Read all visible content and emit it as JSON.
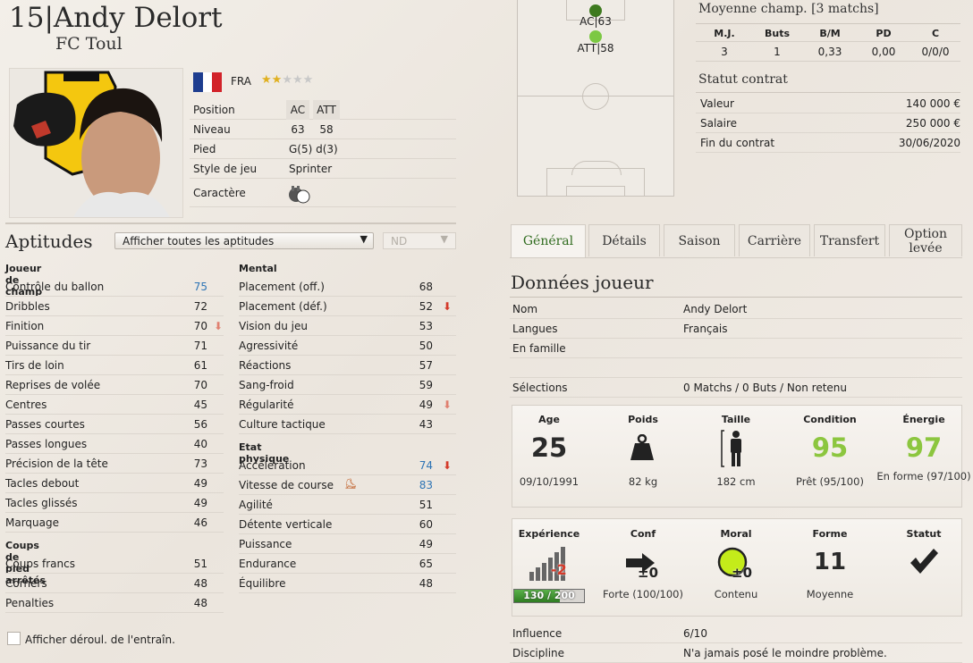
{
  "player": {
    "number": "15",
    "separator": "|",
    "name": "Andy Delort",
    "club": "FC Toul",
    "nationality": "FRA",
    "stars_rating": 2.5,
    "stars_max": 5
  },
  "info_table": {
    "position_label": "Position",
    "position_values": [
      "AC",
      "ATT"
    ],
    "niveau_label": "Niveau",
    "niveau_values": [
      "63",
      "58"
    ],
    "pied_label": "Pied",
    "pied_value": "G(5) d(3)",
    "style_label": "Style de jeu",
    "style_value": "Sprinter",
    "caractere_label": "Caractère"
  },
  "pitch": {
    "players": [
      {
        "label": "AC|63",
        "color": "#3e7a1f"
      },
      {
        "label": "ATT|58",
        "color": "#7cc843"
      }
    ]
  },
  "match_avg": {
    "title": "Moyenne champ. [3 matchs]",
    "headers": [
      "M.J.",
      "Buts",
      "B/M",
      "PD",
      "C"
    ],
    "values": [
      "3",
      "1",
      "0,33",
      "0,00",
      "0/0/0"
    ]
  },
  "contract": {
    "title": "Statut contrat",
    "rows": [
      {
        "label": "Valeur",
        "value": "140 000 €"
      },
      {
        "label": "Salaire",
        "value": "250 000 €"
      },
      {
        "label": "Fin du contrat",
        "value": "30/06/2020"
      }
    ]
  },
  "aptitudes": {
    "title": "Aptitudes",
    "dropdown_value": "Afficher toutes les aptitudes",
    "nd_value": "ND",
    "col1": {
      "section1_title": "Joueur de champ",
      "section1": [
        {
          "name": "Contrôle du ballon",
          "value": "75",
          "hl": true
        },
        {
          "name": "Dribbles",
          "value": "72"
        },
        {
          "name": "Finition",
          "value": "70",
          "arrow": "down-pale"
        },
        {
          "name": "Puissance du tir",
          "value": "71"
        },
        {
          "name": "Tirs de loin",
          "value": "61"
        },
        {
          "name": "Reprises de volée",
          "value": "70"
        },
        {
          "name": "Centres",
          "value": "45"
        },
        {
          "name": "Passes courtes",
          "value": "56"
        },
        {
          "name": "Passes longues",
          "value": "40"
        },
        {
          "name": "Précision de la tête",
          "value": "73"
        },
        {
          "name": "Tacles debout",
          "value": "49"
        },
        {
          "name": "Tacles glissés",
          "value": "49"
        },
        {
          "name": "Marquage",
          "value": "46"
        }
      ],
      "section2_title": "Coups de pied arrêtés",
      "section2": [
        {
          "name": "Coups francs",
          "value": "51"
        },
        {
          "name": "Corners",
          "value": "48"
        },
        {
          "name": "Penalties",
          "value": "48"
        }
      ]
    },
    "col2": {
      "section1_title": "Mental",
      "section1": [
        {
          "name": "Placement (off.)",
          "value": "68"
        },
        {
          "name": "Placement (déf.)",
          "value": "52",
          "arrow": "down"
        },
        {
          "name": "Vision du jeu",
          "value": "53"
        },
        {
          "name": "Agressivité",
          "value": "50"
        },
        {
          "name": "Réactions",
          "value": "57"
        },
        {
          "name": "Sang-froid",
          "value": "59"
        },
        {
          "name": "Régularité",
          "value": "49",
          "arrow": "down-pale"
        },
        {
          "name": "Culture tactique",
          "value": "43"
        }
      ],
      "section2_title": "Etat physique",
      "section2": [
        {
          "name": "Accélération",
          "value": "74",
          "hl": true,
          "arrow": "down"
        },
        {
          "name": "Vitesse de course",
          "value": "83",
          "hl": true,
          "icon": true
        },
        {
          "name": "Agilité",
          "value": "51"
        },
        {
          "name": "Détente verticale",
          "value": "60"
        },
        {
          "name": "Puissance",
          "value": "49"
        },
        {
          "name": "Endurance",
          "value": "65"
        },
        {
          "name": "Équilibre",
          "value": "48"
        }
      ]
    },
    "checkbox_label": "Afficher déroul. de l'entraîn."
  },
  "tabs": [
    "Général",
    "Détails",
    "Saison",
    "Carrière",
    "Transfert",
    "Option levée"
  ],
  "general": {
    "title": "Données joueur",
    "rows": [
      {
        "label": "Nom",
        "value": "Andy Delort"
      },
      {
        "label": "Langues",
        "value": "Français"
      },
      {
        "label": "En famille",
        "value": ""
      },
      {
        "label": "",
        "value": ""
      },
      {
        "label": "Sélections",
        "value": "0 Matchs / 0 Buts / Non retenu"
      }
    ],
    "card1": [
      {
        "label": "Age",
        "big": "25",
        "sub": "09/10/1991"
      },
      {
        "label": "Poids",
        "sub": "82 kg"
      },
      {
        "label": "Taille",
        "sub": "182 cm"
      },
      {
        "label": "Condition",
        "big": "95",
        "sub": "Prêt (95/100)"
      },
      {
        "label": "Énergie",
        "big": "97",
        "sub": "En forme (97/100)"
      }
    ],
    "card2": [
      {
        "label": "Expérience",
        "badge": "-2",
        "bar_text": "130 / 200",
        "bar_fraction": 0.65
      },
      {
        "label": "Conf",
        "badge": "±0",
        "sub": "Forte (100/100)"
      },
      {
        "label": "Moral",
        "badge": "±0",
        "sub": "Contenu"
      },
      {
        "label": "Forme",
        "big": "11",
        "sub": "Moyenne"
      },
      {
        "label": "Statut"
      }
    ],
    "bottom_rows": [
      {
        "label": "Influence",
        "value": "6/10"
      },
      {
        "label": "Discipline",
        "value": "N'a jamais posé le moindre problème."
      }
    ]
  },
  "colors": {
    "green_big": "#8cc63f",
    "blue_value": "#2e74b5",
    "red_arrow": "#d43a2a",
    "tab_active_text": "#2f6b1e"
  }
}
